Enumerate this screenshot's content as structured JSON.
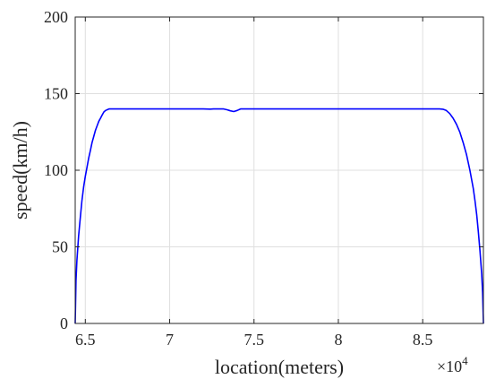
{
  "chart_data": {
    "type": "line",
    "title": "",
    "xlabel": "location(meters)",
    "ylabel": "speed(km/h)",
    "x_multiplier_base": "×10",
    "x_multiplier_exp": "4",
    "xlim": [
      64400,
      88600
    ],
    "ylim": [
      0,
      200
    ],
    "x_ticks": [
      65000,
      70000,
      75000,
      80000,
      85000
    ],
    "x_tick_labels": [
      "6.5",
      "7",
      "7.5",
      "8",
      "8.5"
    ],
    "y_ticks": [
      0,
      50,
      100,
      150,
      200
    ],
    "y_tick_labels": [
      "0",
      "50",
      "100",
      "150",
      "200"
    ],
    "grid": true,
    "line_color": "#0000ff",
    "series": [
      {
        "x": [
          64400,
          64450,
          64500,
          64600,
          64700,
          64800,
          64900,
          65000,
          65100,
          65200,
          65300,
          65400,
          65500,
          65600,
          65700,
          65800,
          65900,
          66000,
          66100,
          66200,
          66400,
          66600,
          66800,
          67000,
          70000,
          72000,
          72400,
          72600,
          72800,
          73000,
          73200,
          73400,
          73600,
          73800,
          74000,
          74200,
          74500,
          76000,
          80000,
          84000,
          85000,
          85800,
          86000,
          86200,
          86400,
          86600,
          86800,
          87000,
          87200,
          87400,
          87600,
          87800,
          88000,
          88100,
          88200,
          88300,
          88400,
          88500,
          88550,
          88600
        ],
        "y": [
          0,
          28,
          41,
          57,
          69,
          80,
          89,
          96,
          102,
          108,
          113,
          118,
          122,
          126,
          129,
          132,
          134,
          136,
          138,
          139,
          140,
          140,
          140,
          140,
          140,
          140,
          139.9,
          140,
          140,
          140,
          140,
          139.5,
          138.8,
          138.3,
          139,
          140,
          140,
          140,
          140,
          140,
          140,
          140,
          140,
          139.8,
          139,
          137,
          134,
          130,
          125,
          118,
          110,
          100,
          88,
          80,
          71,
          60,
          47,
          32,
          20,
          0
        ]
      }
    ]
  }
}
